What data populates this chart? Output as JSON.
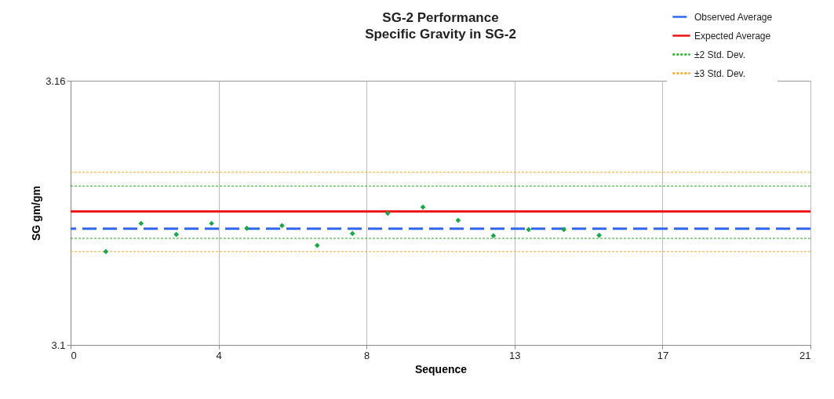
{
  "chart_data": {
    "type": "scatter",
    "title": "SG-2 Performance",
    "subtitle": "Specific Gravity in SG-2",
    "xlabel": "Sequence",
    "ylabel": "SG gm/gm",
    "x": [
      1,
      2,
      3,
      4,
      5,
      6,
      7,
      8,
      9,
      10,
      11,
      12,
      13,
      14,
      15
    ],
    "series": [
      {
        "color": "#1aa64a",
        "values": [
          3.1212,
          3.1276,
          3.1251,
          3.1276,
          3.1265,
          3.1271,
          3.1226,
          3.1253,
          3.1299,
          3.1313,
          3.1283,
          3.1248,
          3.1262,
          3.1262,
          3.1249
        ]
      }
    ],
    "marker": "diamond",
    "xlim": [
      0,
      21
    ],
    "xticks": [
      0,
      {
        "value": 4.2,
        "label": "4"
      },
      {
        "value": 8.4,
        "label": "8"
      },
      {
        "value": 12.6,
        "label": "13"
      },
      {
        "value": 16.8,
        "label": "17"
      },
      21
    ],
    "ylim": [
      3.1,
      3.16
    ],
    "yticks": [
      3.1,
      3.16
    ],
    "grid": "x",
    "legend": "top right",
    "ref_lines": [
      {
        "axis": "y",
        "value": 3.1264,
        "label": "Observed Average",
        "color": "#3366ee",
        "line_style": "dashed"
      },
      {
        "axis": "y",
        "value": 3.1303,
        "label": "Expected Average",
        "color": "#ee1111",
        "line_style": "solid"
      },
      {
        "axis": "y",
        "value": 3.1361,
        "label": "±2 Std. Dev.",
        "color": "#22aa22",
        "line_style": "dotted"
      },
      {
        "axis": "y",
        "value": 3.1242,
        "color": "#22aa22",
        "line_style": "dotted"
      },
      {
        "axis": "y",
        "value": 3.1392,
        "label": "±3 Std. Dev.",
        "color": "#f5a623",
        "line_style": "dotted"
      },
      {
        "axis": "y",
        "value": 3.1212,
        "color": "#f5a623",
        "line_style": "dotted"
      }
    ]
  }
}
